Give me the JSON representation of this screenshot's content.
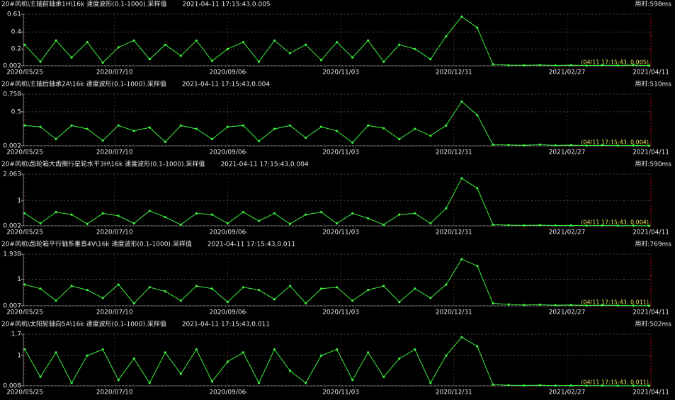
{
  "chart_data": [
    {
      "type": "line",
      "title": "20#风机\\主轴前轴承1H\\16k 速度波形(0.1-1000).采样值",
      "subtitle": "2021-04-11 17:15:43,0.005",
      "elapsed": "用时:598ms",
      "annotation": "(04/11 17:15:43, 0.005)",
      "x": [
        "2020/05/25",
        "2020/06/02",
        "2020/06/10",
        "2020/06/18",
        "2020/06/26",
        "2020/07/04",
        "2020/07/12",
        "2020/07/20",
        "2020/07/28",
        "2020/08/05",
        "2020/08/13",
        "2020/08/21",
        "2020/08/29",
        "2020/09/06",
        "2020/09/14",
        "2020/09/22",
        "2020/09/30",
        "2020/10/08",
        "2020/10/16",
        "2020/10/24",
        "2020/11/01",
        "2020/11/09",
        "2020/11/17",
        "2020/11/25",
        "2020/12/03",
        "2020/12/11",
        "2020/12/19",
        "2020/12/27",
        "2021/01/04",
        "2021/01/12",
        "2021/01/20",
        "2021/01/28",
        "2021/02/05",
        "2021/02/13",
        "2021/02/21",
        "2021/03/01",
        "2021/03/09",
        "2021/03/17",
        "2021/03/25",
        "2021/04/02",
        "2021/04/10"
      ],
      "values": [
        0.25,
        0.05,
        0.3,
        0.1,
        0.28,
        0.04,
        0.22,
        0.3,
        0.08,
        0.25,
        0.12,
        0.3,
        0.06,
        0.2,
        0.28,
        0.05,
        0.3,
        0.15,
        0.25,
        0.07,
        0.28,
        0.1,
        0.3,
        0.05,
        0.25,
        0.2,
        0.08,
        0.35,
        0.58,
        0.45,
        0.02,
        0.01,
        0.008,
        0.012,
        0.006,
        0.01,
        0.005,
        0.008,
        0.006,
        0.01,
        0.005
      ],
      "color": "#3cf03c",
      "grid": true,
      "xlim": [
        "2020/05/25",
        "2021/04/11"
      ],
      "xticks": [
        "2020/05/25",
        "2020/07/10",
        "2020/09/06",
        "2020/11/03",
        "2020/12/31",
        "2021/02/27",
        "2021/04/11"
      ],
      "ylim": [
        0.002,
        0.61
      ],
      "yticks": [
        0.002,
        0.2,
        0.4,
        0.61
      ]
    },
    {
      "type": "line",
      "title": "20#风机\\主轴后轴承2A\\16k 速度波形(0.1-1000).采样值",
      "subtitle": "2021-04-11 17:15:43,0.004",
      "elapsed": "用时:510ms",
      "annotation": "(04/11 17:15:43, 0.004)",
      "x": [
        "2020/05/25",
        "2020/06/02",
        "2020/06/10",
        "2020/06/18",
        "2020/06/26",
        "2020/07/04",
        "2020/07/12",
        "2020/07/20",
        "2020/07/28",
        "2020/08/05",
        "2020/08/13",
        "2020/08/21",
        "2020/08/29",
        "2020/09/06",
        "2020/09/14",
        "2020/09/22",
        "2020/09/30",
        "2020/10/08",
        "2020/10/16",
        "2020/10/24",
        "2020/11/01",
        "2020/11/09",
        "2020/11/17",
        "2020/11/25",
        "2020/12/03",
        "2020/12/11",
        "2020/12/19",
        "2020/12/27",
        "2021/01/04",
        "2021/01/12",
        "2021/01/20",
        "2021/01/28",
        "2021/02/05",
        "2021/02/13",
        "2021/02/21",
        "2021/03/01",
        "2021/03/09",
        "2021/03/17",
        "2021/03/25",
        "2021/04/02",
        "2021/04/10"
      ],
      "values": [
        0.3,
        0.28,
        0.1,
        0.3,
        0.25,
        0.08,
        0.3,
        0.22,
        0.27,
        0.06,
        0.3,
        0.25,
        0.1,
        0.28,
        0.3,
        0.07,
        0.25,
        0.3,
        0.12,
        0.28,
        0.22,
        0.05,
        0.3,
        0.26,
        0.1,
        0.25,
        0.15,
        0.3,
        0.65,
        0.45,
        0.02,
        0.015,
        0.01,
        0.02,
        0.008,
        0.012,
        0.006,
        0.01,
        0.005,
        0.008,
        0.004
      ],
      "color": "#3cf03c",
      "grid": true,
      "xlim": [
        "2020/05/25",
        "2021/04/11"
      ],
      "xticks": [
        "2020/05/25",
        "2020/07/10",
        "2020/09/06",
        "2020/11/03",
        "2020/12/31",
        "2021/02/27",
        "2021/04/11"
      ],
      "ylim": [
        0.002,
        0.758
      ],
      "yticks": [
        0.002,
        0.5,
        0.758
      ]
    },
    {
      "type": "line",
      "title": "20#风机\\齿轮箱大齿圈行星轮水平3H\\16k 速度波形(0.1-1000).采样值",
      "subtitle": "2021-04-11 17:15:43,0.004",
      "elapsed": "用时:590ms",
      "annotation": "(04/11 17:15:43, 0.004)",
      "x": [
        "2020/05/25",
        "2020/06/02",
        "2020/06/10",
        "2020/06/18",
        "2020/06/26",
        "2020/07/04",
        "2020/07/12",
        "2020/07/20",
        "2020/07/28",
        "2020/08/05",
        "2020/08/13",
        "2020/08/21",
        "2020/08/29",
        "2020/09/06",
        "2020/09/14",
        "2020/09/22",
        "2020/09/30",
        "2020/10/08",
        "2020/10/16",
        "2020/10/24",
        "2020/11/01",
        "2020/11/09",
        "2020/11/17",
        "2020/11/25",
        "2020/12/03",
        "2020/12/11",
        "2020/12/19",
        "2020/12/27",
        "2021/01/04",
        "2021/01/12",
        "2021/01/20",
        "2021/01/28",
        "2021/02/05",
        "2021/02/13",
        "2021/02/21",
        "2021/03/01",
        "2021/03/09",
        "2021/03/17",
        "2021/03/25",
        "2021/04/02",
        "2021/04/10"
      ],
      "values": [
        0.5,
        0.1,
        0.55,
        0.45,
        0.08,
        0.5,
        0.4,
        0.1,
        0.6,
        0.35,
        0.05,
        0.5,
        0.45,
        0.1,
        0.55,
        0.2,
        0.5,
        0.08,
        0.45,
        0.55,
        0.1,
        0.5,
        0.3,
        0.05,
        0.45,
        0.5,
        0.1,
        0.7,
        1.9,
        1.5,
        0.05,
        0.03,
        0.02,
        0.03,
        0.015,
        0.02,
        0.01,
        0.015,
        0.01,
        0.008,
        0.004
      ],
      "color": "#3cf03c",
      "grid": true,
      "xlim": [
        "2020/05/25",
        "2021/04/11"
      ],
      "xticks": [
        "2020/05/25",
        "2020/07/10",
        "2020/09/06",
        "2020/11/03",
        "2020/12/31",
        "2021/02/27",
        "2021/04/11"
      ],
      "ylim": [
        0.002,
        2.063
      ],
      "yticks": [
        0.002,
        1,
        2.063
      ]
    },
    {
      "type": "line",
      "title": "20#风机\\齿轮箱平行轴系垂直4V\\16k 速度波形(0.1-1000).采样值",
      "subtitle": "2021-04-11 17:15:43,0.011",
      "elapsed": "用时:769ms",
      "annotation": "(04/11 17:15:43, 0.011)",
      "x": [
        "2020/05/25",
        "2020/06/02",
        "2020/06/10",
        "2020/06/18",
        "2020/06/26",
        "2020/07/04",
        "2020/07/12",
        "2020/07/20",
        "2020/07/28",
        "2020/08/05",
        "2020/08/13",
        "2020/08/21",
        "2020/08/29",
        "2020/09/06",
        "2020/09/14",
        "2020/09/22",
        "2020/09/30",
        "2020/10/08",
        "2020/10/16",
        "2020/10/24",
        "2020/11/01",
        "2020/11/09",
        "2020/11/17",
        "2020/11/25",
        "2020/12/03",
        "2020/12/11",
        "2020/12/19",
        "2020/12/27",
        "2021/01/04",
        "2021/01/12",
        "2021/01/20",
        "2021/01/28",
        "2021/02/05",
        "2021/02/13",
        "2021/02/21",
        "2021/03/01",
        "2021/03/09",
        "2021/03/17",
        "2021/03/25",
        "2021/04/02",
        "2021/04/10"
      ],
      "values": [
        0.8,
        0.65,
        0.2,
        0.75,
        0.6,
        0.3,
        0.8,
        0.1,
        0.7,
        0.55,
        0.2,
        0.75,
        0.65,
        0.15,
        0.7,
        0.6,
        0.25,
        0.75,
        0.1,
        0.65,
        0.7,
        0.2,
        0.6,
        0.75,
        0.15,
        0.65,
        0.3,
        0.8,
        1.75,
        1.5,
        0.1,
        0.06,
        0.04,
        0.05,
        0.03,
        0.04,
        0.02,
        0.03,
        0.02,
        0.015,
        0.011
      ],
      "color": "#3cf03c",
      "grid": true,
      "xlim": [
        "2020/05/25",
        "2021/04/11"
      ],
      "xticks": [
        "2020/05/25",
        "2020/07/10",
        "2020/09/06",
        "2020/11/03",
        "2020/12/31",
        "2021/02/27",
        "2021/04/11"
      ],
      "ylim": [
        0.007,
        1.938
      ],
      "yticks": [
        0.007,
        1,
        1.938
      ]
    },
    {
      "type": "line",
      "title": "20#风机\\太阳轮轴向5A\\16k 速度波形(0.1-1000).采样值",
      "subtitle": "2021-04-11 17:15:43,0.011",
      "elapsed": "用时:502ms",
      "annotation": "(04/11 17:15:43, 0.011)",
      "x": [
        "2020/05/25",
        "2020/06/02",
        "2020/06/10",
        "2020/06/18",
        "2020/06/26",
        "2020/07/04",
        "2020/07/12",
        "2020/07/20",
        "2020/07/28",
        "2020/08/05",
        "2020/08/13",
        "2020/08/21",
        "2020/08/29",
        "2020/09/06",
        "2020/09/14",
        "2020/09/22",
        "2020/09/30",
        "2020/10/08",
        "2020/10/16",
        "2020/10/24",
        "2020/11/01",
        "2020/11/09",
        "2020/11/17",
        "2020/11/25",
        "2020/12/03",
        "2020/12/11",
        "2020/12/19",
        "2020/12/27",
        "2021/01/04",
        "2021/01/12",
        "2021/01/20",
        "2021/01/28",
        "2021/02/05",
        "2021/02/13",
        "2021/02/21",
        "2021/03/01",
        "2021/03/09",
        "2021/03/17",
        "2021/03/25",
        "2021/04/02",
        "2021/04/10"
      ],
      "values": [
        1.2,
        0.3,
        1.1,
        0.1,
        1.0,
        1.2,
        0.2,
        0.9,
        0.1,
        1.1,
        0.4,
        1.2,
        0.15,
        0.8,
        1.1,
        0.1,
        1.2,
        0.5,
        0.1,
        1.0,
        1.2,
        0.2,
        1.1,
        0.3,
        0.9,
        1.2,
        0.1,
        1.0,
        1.6,
        1.3,
        0.05,
        0.03,
        0.02,
        0.03,
        0.015,
        0.02,
        0.012,
        0.015,
        0.01,
        0.012,
        0.011
      ],
      "color": "#3cf03c",
      "grid": true,
      "xlim": [
        "2020/05/25",
        "2021/04/11"
      ],
      "xticks": [
        "2020/05/25",
        "2020/07/10",
        "2020/09/06",
        "2020/11/03",
        "2020/12/31",
        "2021/02/27",
        "2021/04/11"
      ],
      "ylim": [
        0.008,
        1.7
      ],
      "yticks": [
        0.008,
        1,
        1.7
      ]
    }
  ]
}
